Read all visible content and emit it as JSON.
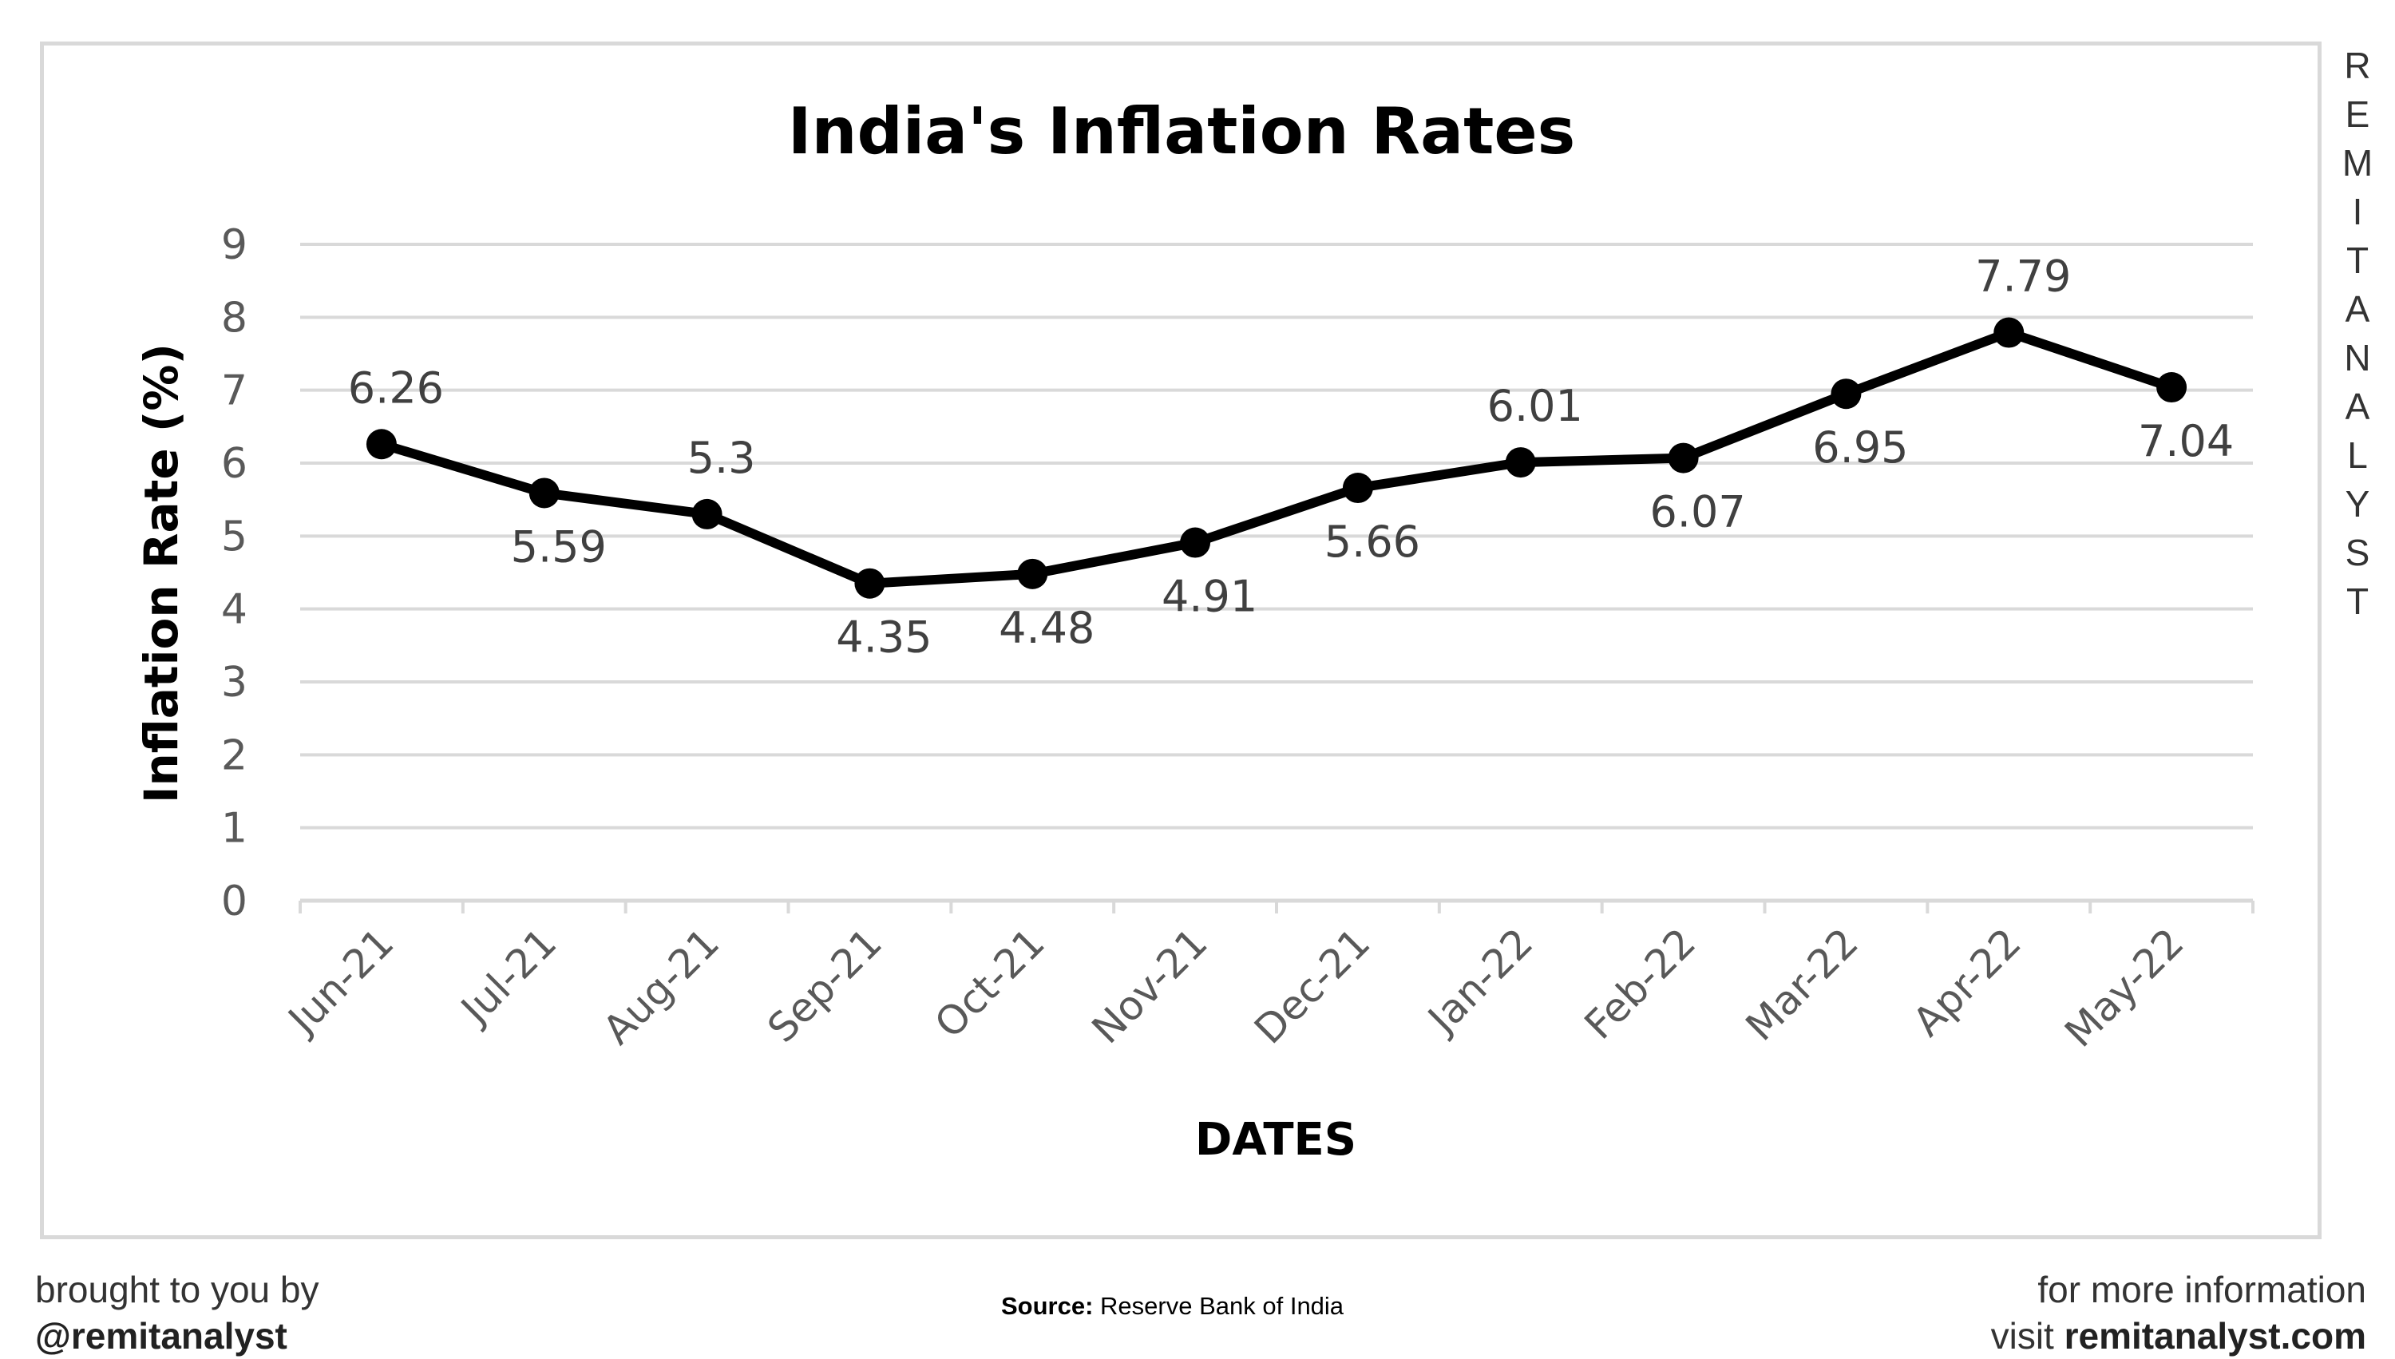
{
  "brand": {
    "watermark": "REMITANALYST"
  },
  "footer": {
    "left_line1": "brought to you by",
    "left_handle": "@remitanalyst",
    "source_label": "Source:",
    "source_text": "Reserve Bank of India",
    "right_line1": "for more information",
    "right_visit": "visit",
    "right_site": "remitanalyst.com"
  },
  "colors": {
    "line": "#000000",
    "grid": "#d9d9d9",
    "tick_text": "#595959",
    "label_text": "#404040"
  },
  "chart_data": {
    "type": "line",
    "title": "India's Inflation Rates",
    "xlabel": "DATES",
    "ylabel": "Inflation Rate (%)",
    "ylim": [
      0,
      9
    ],
    "yticks": [
      0,
      1,
      2,
      3,
      4,
      5,
      6,
      7,
      8,
      9
    ],
    "grid": true,
    "legend": "none",
    "categories": [
      "Jun-21",
      "Jul-21",
      "Aug-21",
      "Sep-21",
      "Oct-21",
      "Nov-21",
      "Dec-21",
      "Jan-22",
      "Feb-22",
      "Mar-22",
      "Apr-22",
      "May-22"
    ],
    "series": [
      {
        "values": [
          6.26,
          5.59,
          5.3,
          4.35,
          4.48,
          4.91,
          5.66,
          6.01,
          6.07,
          6.95,
          7.79,
          7.04
        ]
      }
    ],
    "data_labels": [
      "6.26",
      "5.59",
      "5.3",
      "4.35",
      "4.48",
      "4.91",
      "5.66",
      "6.01",
      "6.07",
      "6.95",
      "7.79",
      "7.04"
    ],
    "label_positions": [
      "above",
      "below",
      "above",
      "below",
      "below",
      "below",
      "below",
      "above",
      "below",
      "below",
      "above",
      "below"
    ]
  }
}
